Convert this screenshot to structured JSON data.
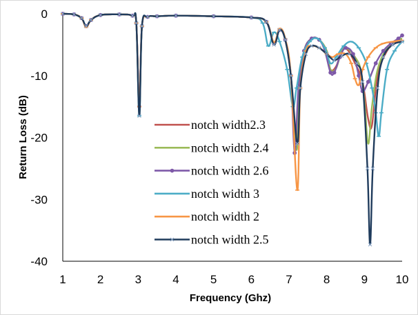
{
  "chart_data": {
    "type": "line",
    "title": "",
    "xlabel": "Frequency (Ghz)",
    "ylabel": "Return Loss (dB)",
    "xlim": [
      1,
      10
    ],
    "ylim": [
      -40,
      0
    ],
    "xticks": [
      1,
      2,
      3,
      4,
      5,
      6,
      7,
      8,
      9,
      10
    ],
    "yticks": [
      0,
      -10,
      -20,
      -30,
      -40
    ],
    "grid": false,
    "legend_position": "center-left",
    "series": [
      {
        "name": "notch width2.3",
        "color": "#C0504D",
        "marker": "none",
        "points": [
          [
            1,
            0
          ],
          [
            1.3,
            -0.1
          ],
          [
            1.5,
            -0.7
          ],
          [
            1.62,
            -2
          ],
          [
            1.75,
            -1
          ],
          [
            2,
            -0.2
          ],
          [
            2.5,
            -0.1
          ],
          [
            2.85,
            -0.3
          ],
          [
            2.95,
            -1.5
          ],
          [
            3.03,
            -15
          ],
          [
            3.1,
            -2
          ],
          [
            3.25,
            -0.5
          ],
          [
            3.5,
            -0.4
          ],
          [
            4,
            -0.3
          ],
          [
            5,
            -0.4
          ],
          [
            6,
            -0.6
          ],
          [
            6.4,
            -1.3
          ],
          [
            6.6,
            -4.8
          ],
          [
            6.75,
            -2.6
          ],
          [
            6.9,
            -4.2
          ],
          [
            7.05,
            -10
          ],
          [
            7.2,
            -21.5
          ],
          [
            7.28,
            -12
          ],
          [
            7.4,
            -6
          ],
          [
            7.6,
            -4
          ],
          [
            7.8,
            -4.2
          ],
          [
            8,
            -6
          ],
          [
            8.1,
            -9
          ],
          [
            8.25,
            -8.5
          ],
          [
            8.4,
            -6
          ],
          [
            8.55,
            -5.8
          ],
          [
            8.75,
            -8
          ],
          [
            8.95,
            -11
          ],
          [
            9.1,
            -17
          ],
          [
            9.2,
            -18
          ],
          [
            9.35,
            -10
          ],
          [
            9.6,
            -6
          ],
          [
            9.85,
            -4.5
          ],
          [
            10,
            -4.2
          ]
        ]
      },
      {
        "name": "notch width 2.4",
        "color": "#9BBB59",
        "marker": "none",
        "points": [
          [
            1,
            0
          ],
          [
            1.3,
            -0.1
          ],
          [
            1.5,
            -0.7
          ],
          [
            1.62,
            -2
          ],
          [
            1.75,
            -1
          ],
          [
            2,
            -0.2
          ],
          [
            2.5,
            -0.1
          ],
          [
            2.85,
            -0.3
          ],
          [
            2.95,
            -1.5
          ],
          [
            3.03,
            -16
          ],
          [
            3.1,
            -2
          ],
          [
            3.25,
            -0.5
          ],
          [
            3.5,
            -0.4
          ],
          [
            4,
            -0.3
          ],
          [
            5,
            -0.4
          ],
          [
            6,
            -0.6
          ],
          [
            6.4,
            -1.3
          ],
          [
            6.6,
            -4.8
          ],
          [
            6.75,
            -2.6
          ],
          [
            6.9,
            -4.2
          ],
          [
            7.05,
            -10
          ],
          [
            7.2,
            -22
          ],
          [
            7.28,
            -12
          ],
          [
            7.4,
            -6
          ],
          [
            7.6,
            -4
          ],
          [
            7.8,
            -4.2
          ],
          [
            8,
            -6
          ],
          [
            8.1,
            -9
          ],
          [
            8.25,
            -8.8
          ],
          [
            8.4,
            -6
          ],
          [
            8.55,
            -5.6
          ],
          [
            8.75,
            -7
          ],
          [
            8.9,
            -9
          ],
          [
            9.0,
            -14
          ],
          [
            9.1,
            -21
          ],
          [
            9.2,
            -15
          ],
          [
            9.35,
            -9
          ],
          [
            9.6,
            -5.5
          ],
          [
            9.85,
            -4.3
          ],
          [
            10,
            -4
          ]
        ]
      },
      {
        "name": "notch width 2.6",
        "color": "#7E59A8",
        "marker": "circle",
        "points": [
          [
            1,
            0
          ],
          [
            1.3,
            -0.1
          ],
          [
            1.5,
            -0.7
          ],
          [
            1.62,
            -2
          ],
          [
            1.75,
            -1
          ],
          [
            2,
            -0.2
          ],
          [
            2.5,
            -0.1
          ],
          [
            2.85,
            -0.3
          ],
          [
            2.95,
            -1.5
          ],
          [
            3.03,
            -15
          ],
          [
            3.1,
            -2
          ],
          [
            3.25,
            -0.5
          ],
          [
            3.5,
            -0.4
          ],
          [
            4,
            -0.3
          ],
          [
            5,
            -0.4
          ],
          [
            6,
            -0.6
          ],
          [
            6.4,
            -1.3
          ],
          [
            6.6,
            -4.8
          ],
          [
            6.75,
            -2.6
          ],
          [
            6.9,
            -4.2
          ],
          [
            7.05,
            -10
          ],
          [
            7.15,
            -22.5
          ],
          [
            7.25,
            -12
          ],
          [
            7.4,
            -6
          ],
          [
            7.6,
            -4
          ],
          [
            7.8,
            -4.2
          ],
          [
            7.95,
            -6
          ],
          [
            8.1,
            -9.5
          ],
          [
            8.2,
            -9.5
          ],
          [
            8.35,
            -7
          ],
          [
            8.5,
            -5.5
          ],
          [
            8.7,
            -6.5
          ],
          [
            8.85,
            -10
          ],
          [
            8.95,
            -12.5
          ],
          [
            9.1,
            -11
          ],
          [
            9.3,
            -8
          ],
          [
            9.5,
            -6
          ],
          [
            9.7,
            -4.8
          ],
          [
            9.9,
            -4
          ],
          [
            10,
            -3.5
          ]
        ]
      },
      {
        "name": "notch width 3",
        "color": "#4BACC6",
        "marker": "dash",
        "points": [
          [
            1,
            0
          ],
          [
            1.3,
            -0.1
          ],
          [
            1.5,
            -0.7
          ],
          [
            1.62,
            -2
          ],
          [
            1.75,
            -1
          ],
          [
            2,
            -0.2
          ],
          [
            2.5,
            -0.1
          ],
          [
            2.85,
            -0.3
          ],
          [
            2.95,
            -1.5
          ],
          [
            3.03,
            -16.5
          ],
          [
            3.1,
            -2
          ],
          [
            3.25,
            -0.5
          ],
          [
            3.5,
            -0.4
          ],
          [
            4,
            -0.3
          ],
          [
            5,
            -0.4
          ],
          [
            6,
            -0.6
          ],
          [
            6.3,
            -1.5
          ],
          [
            6.45,
            -5.2
          ],
          [
            6.6,
            -3
          ],
          [
            6.75,
            -4.5
          ],
          [
            6.95,
            -9
          ],
          [
            7.1,
            -15
          ],
          [
            7.2,
            -12
          ],
          [
            7.35,
            -7
          ],
          [
            7.55,
            -4.5
          ],
          [
            7.75,
            -4
          ],
          [
            7.95,
            -5.5
          ],
          [
            8.1,
            -8
          ],
          [
            8.25,
            -7
          ],
          [
            8.45,
            -5.2
          ],
          [
            8.65,
            -4.5
          ],
          [
            8.85,
            -5.5
          ],
          [
            9.05,
            -8
          ],
          [
            9.2,
            -12
          ],
          [
            9.3,
            -16
          ],
          [
            9.38,
            -19.8
          ],
          [
            9.45,
            -16
          ],
          [
            9.6,
            -9
          ],
          [
            9.8,
            -6
          ],
          [
            10,
            -4.5
          ]
        ]
      },
      {
        "name": "notch width 2",
        "color": "#F79646",
        "marker": "dash",
        "points": [
          [
            1,
            0
          ],
          [
            1.3,
            -0.1
          ],
          [
            1.5,
            -0.7
          ],
          [
            1.62,
            -2.2
          ],
          [
            1.75,
            -1
          ],
          [
            2,
            -0.2
          ],
          [
            2.5,
            -0.1
          ],
          [
            2.85,
            -0.3
          ],
          [
            2.95,
            -1.5
          ],
          [
            3.03,
            -15
          ],
          [
            3.1,
            -2
          ],
          [
            3.25,
            -0.5
          ],
          [
            3.5,
            -0.4
          ],
          [
            4,
            -0.3
          ],
          [
            5,
            -0.4
          ],
          [
            6,
            -0.6
          ],
          [
            6.4,
            -1.3
          ],
          [
            6.6,
            -4.6
          ],
          [
            6.75,
            -2.4
          ],
          [
            6.9,
            -4
          ],
          [
            7.05,
            -10
          ],
          [
            7.22,
            -28.5
          ],
          [
            7.3,
            -12
          ],
          [
            7.45,
            -6
          ],
          [
            7.6,
            -5.2
          ],
          [
            7.8,
            -5.5
          ],
          [
            8,
            -6.5
          ],
          [
            8.15,
            -7
          ],
          [
            8.3,
            -6.5
          ],
          [
            8.5,
            -6.5
          ],
          [
            8.65,
            -8
          ],
          [
            8.75,
            -10.5
          ],
          [
            8.85,
            -11.5
          ],
          [
            8.95,
            -9
          ],
          [
            9.1,
            -7
          ],
          [
            9.3,
            -5.5
          ],
          [
            9.5,
            -4.8
          ],
          [
            9.75,
            -4.5
          ],
          [
            10,
            -4.3
          ]
        ]
      },
      {
        "name": "notch width 2.5",
        "color": "#1F3B5C",
        "marker": "cross",
        "points": [
          [
            1,
            0
          ],
          [
            1.3,
            -0.1
          ],
          [
            1.5,
            -0.7
          ],
          [
            1.62,
            -2
          ],
          [
            1.75,
            -1
          ],
          [
            2,
            -0.2
          ],
          [
            2.5,
            -0.1
          ],
          [
            2.85,
            -0.3
          ],
          [
            2.95,
            -1.5
          ],
          [
            3.03,
            -16.5
          ],
          [
            3.1,
            -2
          ],
          [
            3.25,
            -0.5
          ],
          [
            3.5,
            -0.4
          ],
          [
            4,
            -0.3
          ],
          [
            5,
            -0.4
          ],
          [
            6,
            -0.6
          ],
          [
            6.4,
            -1.3
          ],
          [
            6.6,
            -5
          ],
          [
            6.75,
            -2.6
          ],
          [
            6.9,
            -4.2
          ],
          [
            7.05,
            -10
          ],
          [
            7.22,
            -21
          ],
          [
            7.3,
            -12
          ],
          [
            7.45,
            -6.5
          ],
          [
            7.6,
            -5.2
          ],
          [
            7.8,
            -5.5
          ],
          [
            8,
            -6.5
          ],
          [
            8.2,
            -7.5
          ],
          [
            8.4,
            -6.8
          ],
          [
            8.6,
            -6.5
          ],
          [
            8.8,
            -8
          ],
          [
            8.95,
            -11
          ],
          [
            9.08,
            -25
          ],
          [
            9.15,
            -37.3
          ],
          [
            9.22,
            -25
          ],
          [
            9.35,
            -12
          ],
          [
            9.5,
            -7
          ],
          [
            9.75,
            -5
          ],
          [
            10,
            -4.5
          ]
        ]
      }
    ]
  }
}
